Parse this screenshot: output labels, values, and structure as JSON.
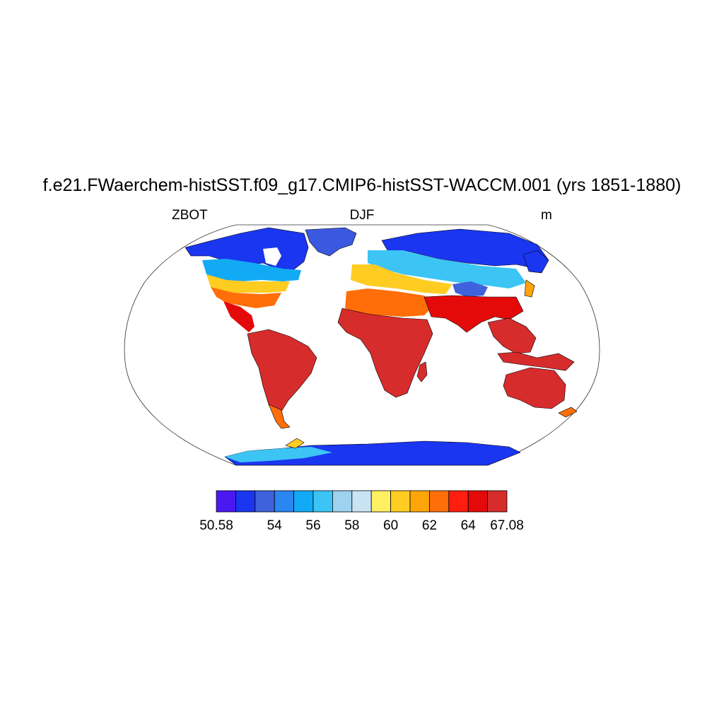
{
  "title": "f.e21.FWaerchem-histSST.f09_g17.CMIP6-histSST-WACCM.001 (yrs 1851-1880)",
  "subtitle_left": "ZBOT",
  "subtitle_center": "DJF",
  "subtitle_right": "m",
  "colorbar": {
    "min": 50.58,
    "max": 67.08,
    "colors": [
      "#4b18f2",
      "#1a36f0",
      "#3f62dc",
      "#2a86f0",
      "#12aaf5",
      "#3cc4f5",
      "#9ed2ee",
      "#c8e4f4",
      "#fff063",
      "#ffcc22",
      "#ffa50a",
      "#ff6e08",
      "#ff1e10",
      "#e40a0a",
      "#d62c2c"
    ],
    "tick_labels": [
      "50.58",
      "54",
      "56",
      "58",
      "60",
      "62",
      "64",
      "67.08"
    ]
  },
  "map": {
    "projection": "Robinson",
    "variable": "ZBOT",
    "season": "DJF",
    "units": "m"
  }
}
